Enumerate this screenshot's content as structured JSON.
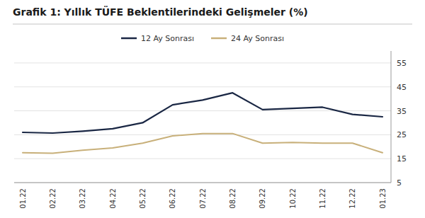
{
  "chart_data": {
    "type": "line",
    "title": "Grafik 1: Yıllık TÜFE Beklentilerindeki Gelişmeler (%)",
    "categories": [
      "01.22",
      "02.22",
      "03.22",
      "04.22",
      "05.22",
      "06.22",
      "07.22",
      "08.22",
      "09.22",
      "10.22",
      "11.22",
      "12.22",
      "01.23"
    ],
    "series": [
      {
        "name": "12 Ay Sonrası",
        "color": "#1a2744",
        "values": [
          26.0,
          25.7,
          26.5,
          27.5,
          30.0,
          37.5,
          39.5,
          42.5,
          35.5,
          36.0,
          36.5,
          33.5,
          32.5
        ]
      },
      {
        "name": "24 Ay Sonrası",
        "color": "#c8b07a",
        "values": [
          17.5,
          17.3,
          18.5,
          19.5,
          21.5,
          24.5,
          25.5,
          25.5,
          21.5,
          21.8,
          21.5,
          21.5,
          17.5
        ]
      }
    ],
    "ylim": [
      5,
      60
    ],
    "yticks": [
      5,
      15,
      25,
      35,
      45,
      55
    ],
    "grid": true,
    "legend": "top"
  }
}
